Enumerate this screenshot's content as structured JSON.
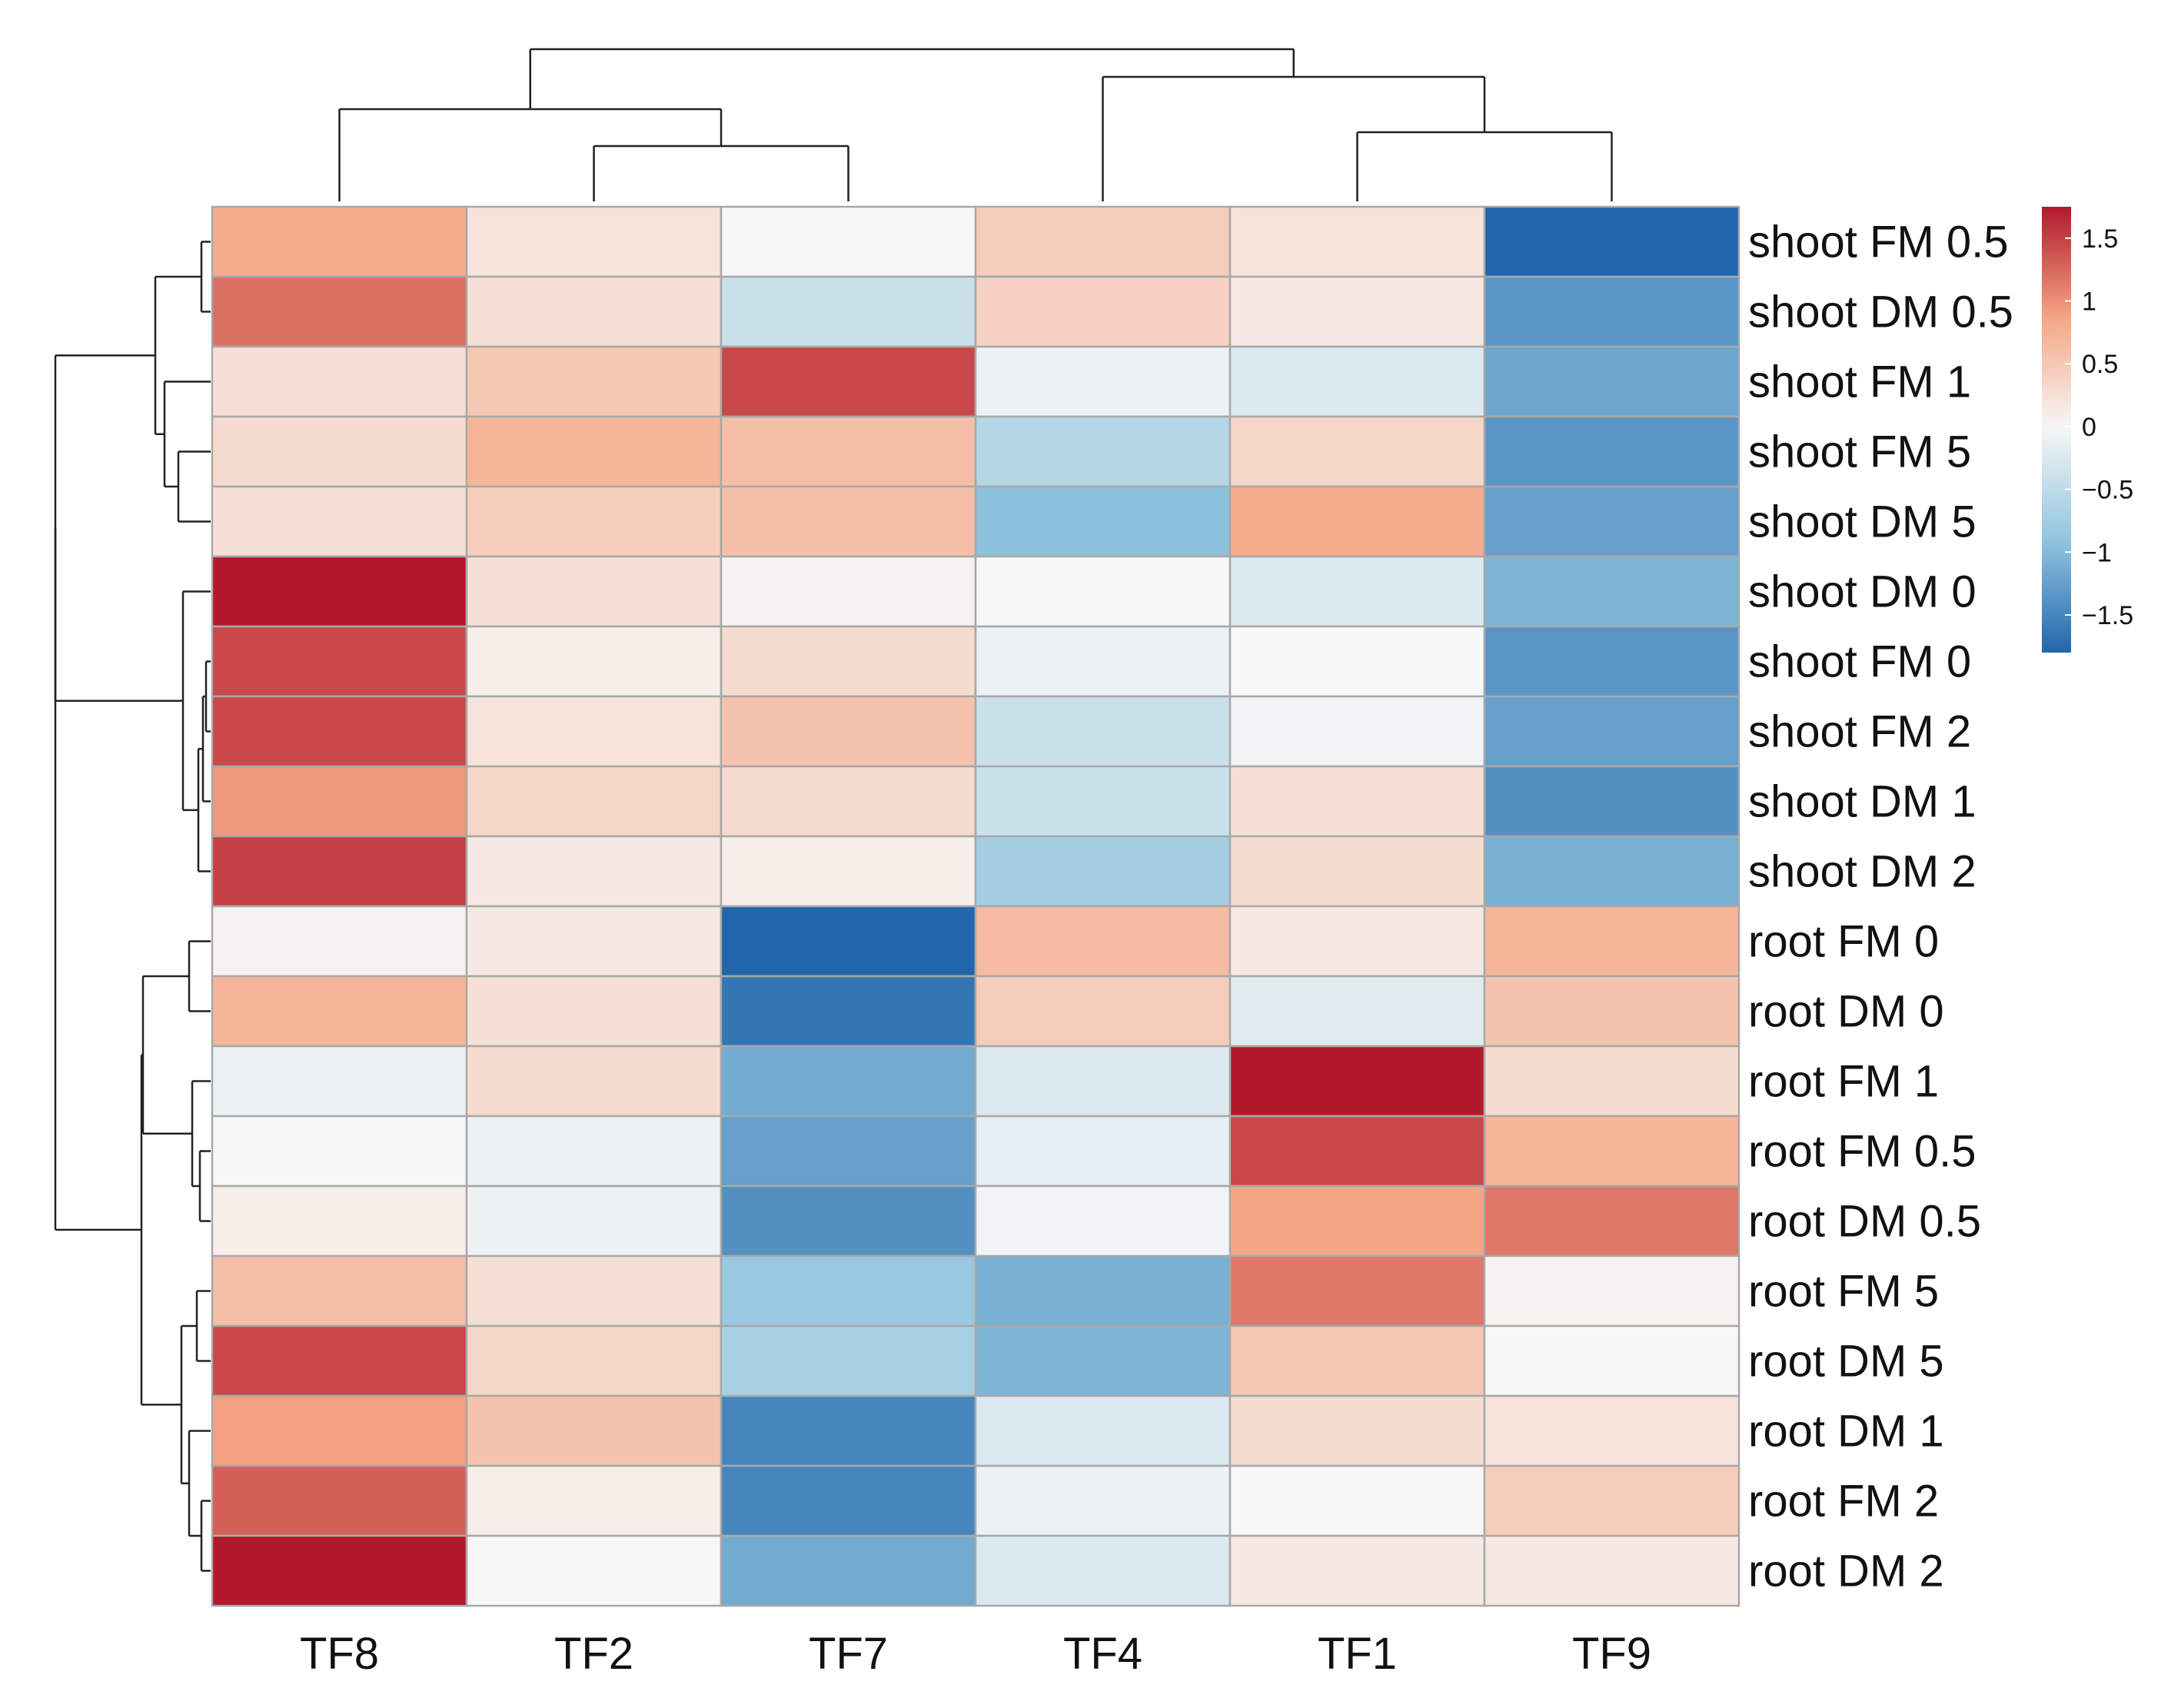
{
  "chart_data": {
    "type": "heatmap",
    "title": "",
    "xlabel": "",
    "ylabel": "",
    "columns": [
      "TF8",
      "TF2",
      "TF7",
      "TF4",
      "TF1",
      "TF9"
    ],
    "rows": [
      "shoot FM 0.5",
      "shoot DM 0.5",
      "shoot FM 1",
      "shoot FM 5",
      "shoot DM 5",
      "shoot DM 0",
      "shoot FM 0",
      "shoot FM 2",
      "shoot DM 1",
      "shoot DM 2",
      "root FM 0",
      "root DM 0",
      "root FM 1",
      "root FM 0.5",
      "root DM 0.5",
      "root FM 5",
      "root DM 5",
      "root DM 1",
      "root FM 2",
      "root DM 2"
    ],
    "values": [
      [
        0.8,
        0.2,
        0.0,
        0.45,
        0.2,
        -1.8
      ],
      [
        1.2,
        0.25,
        -0.4,
        0.4,
        0.15,
        -1.35
      ],
      [
        0.25,
        0.5,
        1.45,
        -0.1,
        -0.25,
        -1.2
      ],
      [
        0.3,
        0.7,
        0.6,
        -0.6,
        0.35,
        -1.35
      ],
      [
        0.25,
        0.45,
        0.6,
        -0.95,
        0.8,
        -1.25
      ],
      [
        1.75,
        0.25,
        0.05,
        0.0,
        -0.25,
        -1.05
      ],
      [
        1.45,
        0.1,
        0.3,
        -0.1,
        0.0,
        -1.35
      ],
      [
        1.45,
        0.2,
        0.55,
        -0.4,
        -0.05,
        -1.25
      ],
      [
        0.95,
        0.35,
        0.3,
        -0.4,
        0.25,
        -1.4
      ],
      [
        1.5,
        0.15,
        0.1,
        -0.75,
        0.3,
        -1.1
      ],
      [
        0.05,
        0.15,
        -1.8,
        0.65,
        0.15,
        0.7
      ],
      [
        0.7,
        0.25,
        -1.65,
        0.45,
        -0.2,
        0.55
      ],
      [
        -0.1,
        0.3,
        -1.15,
        -0.25,
        1.75,
        0.3
      ],
      [
        0.0,
        -0.1,
        -1.25,
        -0.15,
        1.45,
        0.7
      ],
      [
        0.1,
        -0.1,
        -1.4,
        -0.05,
        0.85,
        1.15
      ],
      [
        0.6,
        0.25,
        -0.85,
        -1.1,
        1.15,
        0.05
      ],
      [
        1.45,
        0.35,
        -0.7,
        -1.05,
        0.5,
        0.0
      ],
      [
        0.9,
        0.55,
        -1.5,
        -0.25,
        0.3,
        0.2
      ],
      [
        1.3,
        0.1,
        -1.5,
        -0.1,
        0.0,
        0.45
      ],
      [
        1.75,
        0.0,
        -1.15,
        -0.25,
        0.15,
        0.15
      ]
    ],
    "color_scale": {
      "min": -1.8,
      "max": 1.75,
      "low_color": "#2166ac",
      "mid_color": "#f7f7f7",
      "high_color": "#b2182b",
      "ticks": [
        1.5,
        1,
        0.5,
        0,
        -0.5,
        -1,
        -1.5
      ],
      "tick_labels": [
        "1.5",
        "1",
        "0.5",
        "0",
        "-0.5",
        "-1",
        "-1.5"
      ]
    },
    "legend_position": "top-right",
    "column_dendrogram": "((TF8,(TF2,TF7)),(TF4,(TF1,TF9)))",
    "row_dendrogram": "clustered shoot rows (0.5,0.5,1,5,5 / 0,0,2,1,2) vs root rows (0,0 / 1,0.5,0.5 / 5,5 / 1,2,2)"
  }
}
